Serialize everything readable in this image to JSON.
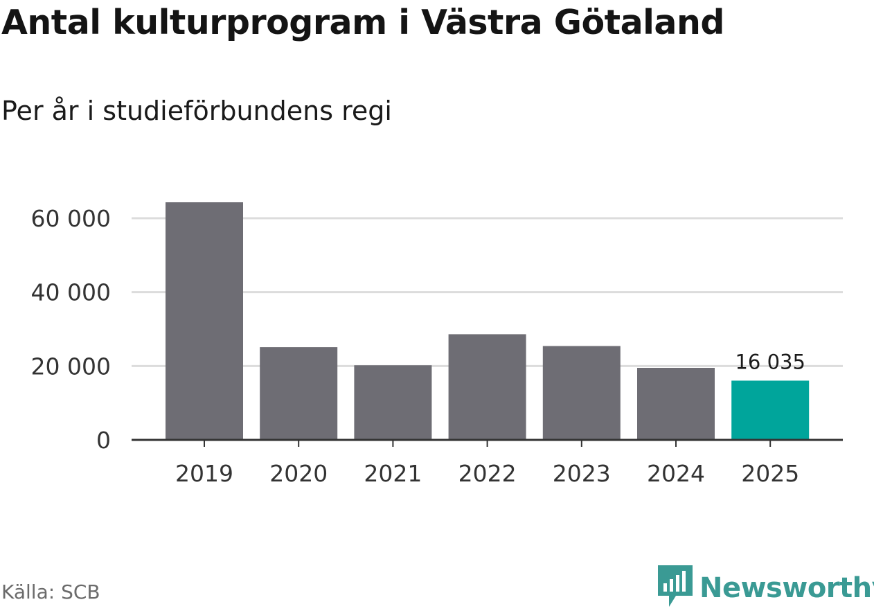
{
  "header": {
    "title": "Antal kulturprogram i Västra Götaland",
    "subtitle": "Per år i studieförbundens regi"
  },
  "footer": {
    "source": "Källa: SCB",
    "brand": "Newsworthy",
    "brand_icon": "newsworthy-logo-icon"
  },
  "colors": {
    "bar": "#6e6d74",
    "highlight": "#00a59b",
    "grid": "#dcdcdc",
    "axis": "#333333",
    "brand": "#3a9a94"
  },
  "chart_data": {
    "type": "bar",
    "title": "Antal kulturprogram i Västra Götaland",
    "subtitle": "Per år i studieförbundens regi",
    "xlabel": "",
    "ylabel": "",
    "categories": [
      "2019",
      "2020",
      "2021",
      "2022",
      "2023",
      "2024",
      "2025"
    ],
    "values": [
      64300,
      25100,
      20200,
      28600,
      25400,
      19500,
      16035
    ],
    "highlight_index": 6,
    "data_labels": [
      {
        "index": 6,
        "text": "16 035"
      }
    ],
    "ylim": [
      0,
      64300
    ],
    "yticks": [
      0,
      20000,
      40000,
      60000
    ],
    "ytick_labels": [
      "0",
      "20 000",
      "40 000",
      "60 000"
    ],
    "grid": true,
    "source": "Källa: SCB"
  }
}
